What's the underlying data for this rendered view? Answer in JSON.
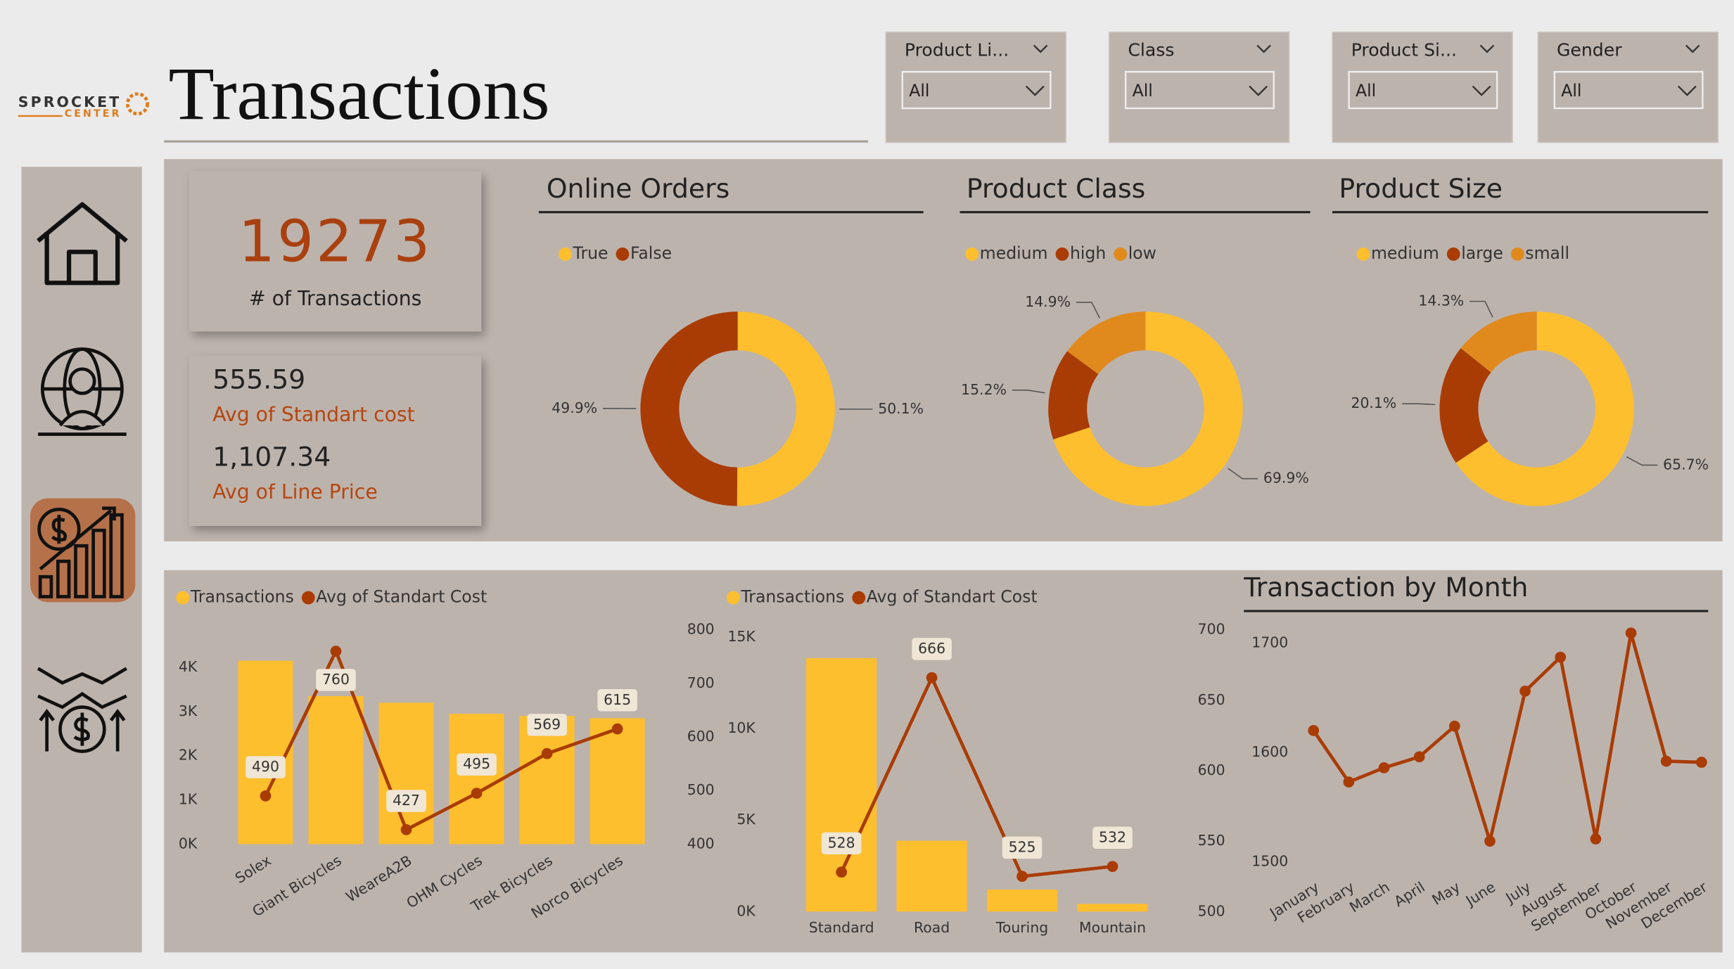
{
  "header": {
    "logo": [
      "SPROCKET",
      "CENTER"
    ],
    "title": "Transactions"
  },
  "filters": [
    {
      "label": "Product Li...",
      "value": "All"
    },
    {
      "label": "Class",
      "value": "All"
    },
    {
      "label": "Product Si...",
      "value": "All"
    },
    {
      "label": "Gender",
      "value": "All"
    }
  ],
  "kpis": {
    "transactions": {
      "value": "19273",
      "label": "# of Transactions"
    },
    "avg_cost": {
      "value": "555.59",
      "label": "Avg of Standart cost"
    },
    "avg_price": {
      "value": "1,107.34",
      "label": "Avg of Line Price"
    }
  },
  "chart_data": [
    {
      "type": "pie",
      "title": "Online Orders",
      "categories": [
        "True",
        "False"
      ],
      "values": [
        50.1,
        49.9
      ],
      "value_labels": [
        "50.1%",
        "49.9%"
      ],
      "colors": [
        "#fdbf2d",
        "#a93c05"
      ]
    },
    {
      "type": "pie",
      "title": "Product Class",
      "categories": [
        "medium",
        "high",
        "low"
      ],
      "values": [
        69.9,
        15.2,
        14.9
      ],
      "value_labels": [
        "69.9%",
        "15.2%",
        "14.9%"
      ],
      "colors": [
        "#fdbf2d",
        "#a93c05",
        "#e08a1e"
      ]
    },
    {
      "type": "pie",
      "title": "Product Size",
      "categories": [
        "medium",
        "large",
        "small"
      ],
      "values": [
        65.7,
        20.1,
        14.3
      ],
      "value_labels": [
        "65.7%",
        "20.1%",
        "14.3%"
      ],
      "colors": [
        "#fdbf2d",
        "#a93c05",
        "#e08a1e"
      ]
    },
    {
      "type": "combo",
      "categories": [
        "Solex",
        "Giant Bicycles",
        "WeareA2B",
        "OHM Cycles",
        "Trek Bicycles",
        "Norco Bicycles"
      ],
      "series": [
        {
          "name": "Transactions",
          "color": "#fdbf2d",
          "values": [
            4150,
            3350,
            3200,
            2950,
            2900,
            2850
          ]
        },
        {
          "name": "Avg of Standart Cost",
          "color": "#a93c05",
          "axis": "y2",
          "values": [
            490,
            760,
            427,
            495,
            569,
            615
          ]
        }
      ],
      "ylim": [
        0,
        4850
      ],
      "yticks": [
        {
          "value": 0,
          "label": "0K"
        },
        {
          "value": 1000,
          "label": "1K"
        },
        {
          "value": 2000,
          "label": "2K"
        },
        {
          "value": 3000,
          "label": "3K"
        },
        {
          "value": 4000,
          "label": "4K"
        }
      ],
      "y2lim": [
        400,
        800
      ],
      "y2ticks": [
        400,
        500,
        600,
        700,
        800
      ]
    },
    {
      "type": "combo",
      "categories": [
        "Standard",
        "Road",
        "Touring",
        "Mountain"
      ],
      "series": [
        {
          "name": "Transactions",
          "color": "#fdbf2d",
          "values": [
            13850,
            3870,
            1200,
            420
          ]
        },
        {
          "name": "Avg of Standart Cost",
          "color": "#a93c05",
          "axis": "y2",
          "values": [
            528,
            666,
            525,
            532
          ]
        }
      ],
      "ylim": [
        0,
        15400
      ],
      "yticks": [
        {
          "value": 0,
          "label": "0K"
        },
        {
          "value": 5000,
          "label": "5K"
        },
        {
          "value": 10000,
          "label": "10K"
        },
        {
          "value": 15000,
          "label": "15K"
        }
      ],
      "y2lim": [
        500,
        700
      ],
      "y2ticks": [
        500,
        550,
        600,
        650,
        700
      ]
    },
    {
      "type": "line",
      "title": "Transaction by Month",
      "categories": [
        "January",
        "February",
        "March",
        "April",
        "May",
        "June",
        "July",
        "August",
        "September",
        "October",
        "November",
        "December"
      ],
      "values": [
        1620,
        1573,
        1586,
        1596,
        1624,
        1519,
        1656,
        1687,
        1521,
        1709,
        1592,
        1591
      ],
      "color": "#a93c05",
      "ylim": [
        1490,
        1712
      ],
      "yticks": [
        1500,
        1600,
        1700
      ]
    }
  ]
}
